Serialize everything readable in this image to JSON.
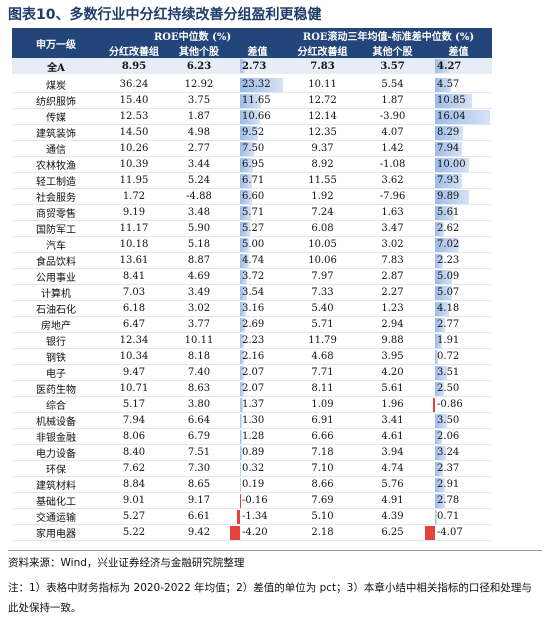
{
  "title": "图表10、多数行业中分红持续改善分组盈利更稳健",
  "table": {
    "corner": "申万一级",
    "group_headers": [
      "ROE中位数 (%)",
      "ROE滚动三年均值-标准差中位数 (%)"
    ],
    "sub_headers": [
      "分红改善组",
      "其他个股",
      "差值",
      "分红改善组",
      "其他个股",
      "差值"
    ],
    "rows": [
      [
        "全A",
        "8.95",
        "6.23",
        "2.73",
        "7.83",
        "3.57",
        "4.27"
      ],
      [
        "煤炭",
        "36.24",
        "12.92",
        "23.32",
        "10.11",
        "5.54",
        "4.57"
      ],
      [
        "纺织服饰",
        "15.40",
        "3.75",
        "11.65",
        "12.72",
        "1.87",
        "10.85"
      ],
      [
        "传媒",
        "12.53",
        "1.87",
        "10.66",
        "12.14",
        "-3.90",
        "16.04"
      ],
      [
        "建筑装饰",
        "14.50",
        "4.98",
        "9.52",
        "12.35",
        "4.07",
        "8.29"
      ],
      [
        "通信",
        "10.26",
        "2.77",
        "7.50",
        "9.37",
        "1.42",
        "7.94"
      ],
      [
        "农林牧渔",
        "10.39",
        "3.44",
        "6.95",
        "8.92",
        "-1.08",
        "10.00"
      ],
      [
        "轻工制造",
        "11.95",
        "5.24",
        "6.71",
        "11.55",
        "3.62",
        "7.93"
      ],
      [
        "社会服务",
        "1.72",
        "-4.88",
        "6.60",
        "1.92",
        "-7.96",
        "9.89"
      ],
      [
        "商贸零售",
        "9.19",
        "3.48",
        "5.71",
        "7.24",
        "1.63",
        "5.61"
      ],
      [
        "国防军工",
        "11.17",
        "5.90",
        "5.27",
        "6.08",
        "3.47",
        "2.62"
      ],
      [
        "汽车",
        "10.18",
        "5.18",
        "5.00",
        "10.05",
        "3.02",
        "7.02"
      ],
      [
        "食品饮料",
        "13.61",
        "8.87",
        "4.74",
        "10.06",
        "7.83",
        "2.23"
      ],
      [
        "公用事业",
        "8.41",
        "4.69",
        "3.72",
        "7.97",
        "2.87",
        "5.09"
      ],
      [
        "计算机",
        "7.03",
        "3.49",
        "3.54",
        "7.33",
        "2.27",
        "5.07"
      ],
      [
        "石油石化",
        "6.18",
        "3.02",
        "3.16",
        "5.40",
        "1.23",
        "4.18"
      ],
      [
        "房地产",
        "6.47",
        "3.77",
        "2.69",
        "5.71",
        "2.94",
        "2.77"
      ],
      [
        "银行",
        "12.34",
        "10.11",
        "2.23",
        "11.79",
        "9.88",
        "1.91"
      ],
      [
        "钢铁",
        "10.34",
        "8.18",
        "2.16",
        "4.68",
        "3.95",
        "0.72"
      ],
      [
        "电子",
        "9.47",
        "7.40",
        "2.07",
        "7.71",
        "4.20",
        "3.51"
      ],
      [
        "医药生物",
        "10.71",
        "8.63",
        "2.07",
        "8.11",
        "5.61",
        "2.50"
      ],
      [
        "综合",
        "5.17",
        "3.80",
        "1.37",
        "1.09",
        "1.96",
        "-0.86"
      ],
      [
        "机械设备",
        "7.94",
        "6.64",
        "1.30",
        "6.91",
        "3.41",
        "3.50"
      ],
      [
        "非银金融",
        "8.06",
        "6.79",
        "1.28",
        "6.66",
        "4.61",
        "2.06"
      ],
      [
        "电力设备",
        "8.40",
        "7.51",
        "0.89",
        "7.18",
        "3.94",
        "3.24"
      ],
      [
        "环保",
        "7.62",
        "7.30",
        "0.32",
        "7.10",
        "4.74",
        "2.37"
      ],
      [
        "建筑材料",
        "8.84",
        "8.65",
        "0.19",
        "8.66",
        "5.76",
        "2.91"
      ],
      [
        "基础化工",
        "9.01",
        "9.17",
        "-0.16",
        "7.69",
        "4.91",
        "2.78"
      ],
      [
        "交通运输",
        "5.27",
        "6.61",
        "-1.34",
        "5.10",
        "4.39",
        "0.71"
      ],
      [
        "家用电器",
        "5.22",
        "9.42",
        "-4.20",
        "2.18",
        "6.25",
        "-4.07"
      ]
    ]
  },
  "source": "资料来源：Wind，兴业证券经济与金融研究院整理",
  "note": "注：1）表格中财务指标为 2020-2022 年均值；2）差值的单位为 pct；3）本章小结中相关指标的口径和处理与此处保持一致。"
}
